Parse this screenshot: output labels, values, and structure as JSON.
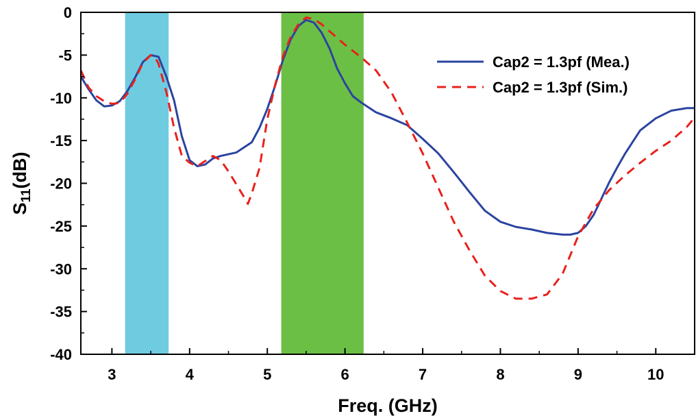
{
  "chart_data": {
    "type": "line",
    "xlabel": "Freq. (GHz)",
    "ylabel_main": "S",
    "ylabel_sub": "11",
    "ylabel_unit": "(dB)",
    "xlim": [
      2.6,
      10.5
    ],
    "ylim": [
      -40,
      0
    ],
    "x_ticks": [
      3,
      4,
      5,
      6,
      7,
      8,
      9,
      10
    ],
    "x_tick_labels": [
      "3",
      "4",
      "5",
      "6",
      "7",
      "8",
      "9",
      "10"
    ],
    "y_ticks": [
      0,
      -5,
      -10,
      -15,
      -20,
      -25,
      -30,
      -35,
      -40
    ],
    "y_tick_labels": [
      "0",
      "-5",
      "-10",
      "-15",
      "-20",
      "-25",
      "-30",
      "-35",
      "-40"
    ],
    "bands": [
      {
        "name": "band-1",
        "x0": 3.17,
        "x1": 3.73,
        "color": "#6fcbe0"
      },
      {
        "name": "band-2",
        "x0": 5.18,
        "x1": 6.24,
        "color": "#6cbf45"
      }
    ],
    "series": [
      {
        "name": "Cap2 = 1.3pf (Mea.)",
        "color": "#2b44a0",
        "dash": "solid",
        "x": [
          2.6,
          2.7,
          2.8,
          2.9,
          3.0,
          3.1,
          3.2,
          3.3,
          3.4,
          3.5,
          3.6,
          3.7,
          3.8,
          3.9,
          4.0,
          4.1,
          4.2,
          4.3,
          4.4,
          4.6,
          4.8,
          4.9,
          5.0,
          5.1,
          5.2,
          5.3,
          5.4,
          5.5,
          5.6,
          5.65,
          5.7,
          5.8,
          5.9,
          6.0,
          6.1,
          6.2,
          6.4,
          6.6,
          6.8,
          7.0,
          7.2,
          7.4,
          7.6,
          7.8,
          8.0,
          8.2,
          8.4,
          8.6,
          8.8,
          8.9,
          9.0,
          9.1,
          9.2,
          9.3,
          9.4,
          9.5,
          9.6,
          9.7,
          9.8,
          10.0,
          10.2,
          10.4,
          10.5
        ],
        "y": [
          -7.5,
          -9.0,
          -10.3,
          -11.0,
          -10.9,
          -10.4,
          -9.2,
          -7.6,
          -5.8,
          -5.0,
          -5.2,
          -7.5,
          -10.3,
          -14.5,
          -17.3,
          -18.0,
          -17.8,
          -17.1,
          -16.8,
          -16.4,
          -15.2,
          -13.5,
          -11.3,
          -8.6,
          -5.6,
          -3.2,
          -1.6,
          -0.9,
          -1.2,
          -1.8,
          -2.4,
          -4.2,
          -6.6,
          -8.3,
          -9.8,
          -10.5,
          -11.7,
          -12.4,
          -13.2,
          -14.8,
          -16.5,
          -18.7,
          -21.0,
          -23.2,
          -24.5,
          -25.1,
          -25.4,
          -25.8,
          -26.0,
          -26.0,
          -25.8,
          -25.0,
          -23.7,
          -21.8,
          -19.9,
          -18.2,
          -16.6,
          -15.2,
          -13.8,
          -12.4,
          -11.5,
          -11.2,
          -11.2
        ]
      },
      {
        "name": "Cap2 = 1.3pf (Sim.)",
        "color": "#e8211b",
        "dash": "dashed",
        "x": [
          2.6,
          2.7,
          2.8,
          2.9,
          3.0,
          3.1,
          3.2,
          3.3,
          3.4,
          3.5,
          3.55,
          3.6,
          3.7,
          3.8,
          3.9,
          4.0,
          4.1,
          4.2,
          4.3,
          4.4,
          4.5,
          4.6,
          4.7,
          4.75,
          4.8,
          4.9,
          5.0,
          5.1,
          5.2,
          5.3,
          5.4,
          5.5,
          5.6,
          5.7,
          5.8,
          5.9,
          6.0,
          6.1,
          6.2,
          6.4,
          6.6,
          6.8,
          7.0,
          7.2,
          7.4,
          7.6,
          7.8,
          8.0,
          8.2,
          8.4,
          8.6,
          8.8,
          9.0,
          9.2,
          9.4,
          9.6,
          9.8,
          10.0,
          10.2,
          10.4,
          10.5
        ],
        "y": [
          -6.8,
          -8.8,
          -9.8,
          -10.4,
          -10.7,
          -10.6,
          -9.5,
          -7.8,
          -5.9,
          -5.0,
          -5.2,
          -6.0,
          -9.3,
          -13.5,
          -16.8,
          -17.6,
          -18.0,
          -17.4,
          -16.8,
          -17.3,
          -18.6,
          -20.1,
          -21.6,
          -22.4,
          -21.2,
          -18.2,
          -12.5,
          -8.5,
          -5.2,
          -2.9,
          -1.4,
          -0.6,
          -0.8,
          -1.4,
          -2.2,
          -3.0,
          -3.8,
          -4.5,
          -5.2,
          -6.8,
          -9.4,
          -12.9,
          -16.5,
          -20.5,
          -24.5,
          -27.8,
          -30.8,
          -32.6,
          -33.5,
          -33.5,
          -33.0,
          -30.6,
          -26.2,
          -23.0,
          -20.8,
          -19.1,
          -17.6,
          -16.2,
          -15.0,
          -13.4,
          -12.3
        ]
      }
    ],
    "legend_position": "top-right"
  }
}
